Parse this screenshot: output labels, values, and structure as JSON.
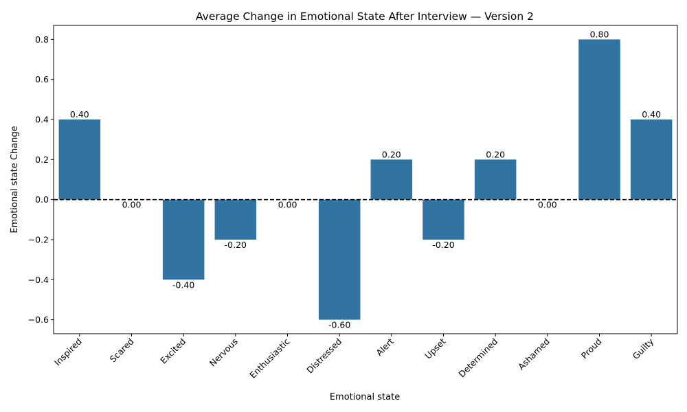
{
  "chart_data": {
    "type": "bar",
    "title": "Average Change in Emotional State After Interview — Version 2",
    "xlabel": "Emotional state",
    "ylabel": "Emotional state Change",
    "categories": [
      "Inspired",
      "Scared",
      "Excited",
      "Nervous",
      "Enthusiastic",
      "Distressed",
      "Alert",
      "Upset",
      "Determined",
      "Ashamed",
      "Proud",
      "Guilty"
    ],
    "values": [
      0.4,
      0.0,
      -0.4,
      -0.2,
      0.0,
      -0.6,
      0.2,
      -0.2,
      0.2,
      0.0,
      0.8,
      0.4
    ],
    "data_labels": [
      "0.40",
      "0.00",
      "-0.40",
      "-0.20",
      "0.00",
      "-0.60",
      "0.20",
      "-0.20",
      "0.20",
      "0.00",
      "0.80",
      "0.40"
    ],
    "yticks": [
      -0.6,
      -0.4,
      -0.2,
      0.0,
      0.2,
      0.4,
      0.6,
      0.8
    ],
    "ytick_labels": [
      "−0.6",
      "−0.4",
      "−0.2",
      "0.0",
      "0.2",
      "0.4",
      "0.6",
      "0.8"
    ],
    "ylim": [
      -0.67,
      0.87
    ],
    "reference_line": 0.0,
    "grid": false,
    "bar_color": "#3274a1"
  }
}
